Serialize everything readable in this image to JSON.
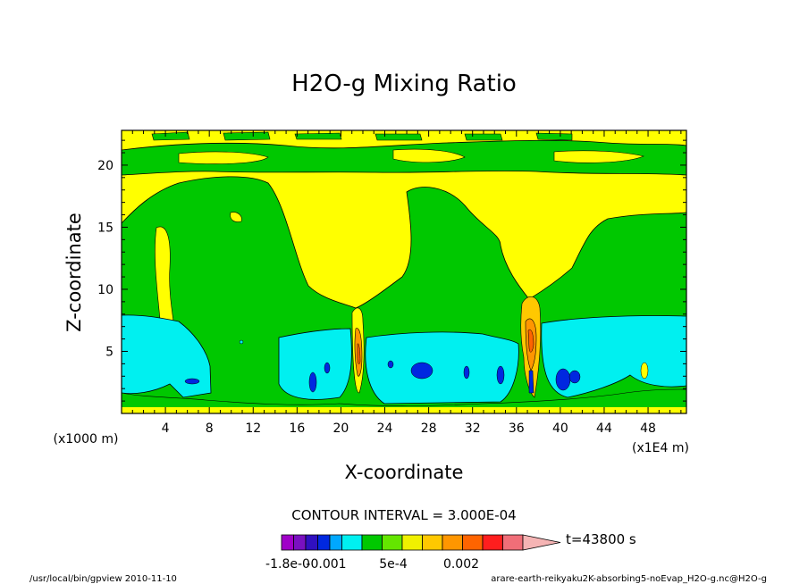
{
  "chart_data": {
    "type": "heatmap",
    "title": "H2O-g Mixing Ratio",
    "xlabel": "X-coordinate",
    "ylabel": "Z-coordinate",
    "x_unit": "(x1E4 m)",
    "y_unit": "(x1000 m)",
    "xlim": [
      0,
      51.5
    ],
    "ylim": [
      0,
      22.8
    ],
    "x_ticks": [
      4,
      8,
      12,
      16,
      20,
      24,
      28,
      32,
      36,
      40,
      44,
      48
    ],
    "y_ticks": [
      5,
      10,
      15,
      20
    ],
    "contour_interval": "CONTOUR INTERVAL = 3.000E-04",
    "time_label": "t=43800 s",
    "colorbar": {
      "levels": [
        -0.0018,
        -0.0015,
        -0.0012,
        -0.0009,
        -0.0006,
        -0.0003,
        0,
        0.0003,
        0.0006,
        0.0009,
        0.0012,
        0.0015,
        0.0018,
        0.0021,
        0.0024
      ],
      "colors": [
        "#a000c8",
        "#7a10c0",
        "#3010c0",
        "#0028e0",
        "#00a8ff",
        "#00f0f0",
        "#00c800",
        "#64e600",
        "#f0f000",
        "#ffc800",
        "#ff9600",
        "#ff6400",
        "#ff1e1e",
        "#f06e78",
        "#f5b4b4"
      ],
      "tick_labels": [
        "-1.8e-0",
        "-0.001",
        "5e-4",
        "0.002"
      ]
    },
    "regions": [
      {
        "zone": "upper atmosphere z 16-22.8",
        "level_range": "0.0006-0.0009 (yellow) with green bands"
      },
      {
        "zone": "mid atmosphere z 8-16",
        "level_range": "0.0003-0.0006 (green)"
      },
      {
        "zone": "lower atmosphere z 0.5-8",
        "level_range": "-0.0003 to 0 (cyan) with green patches"
      },
      {
        "zone": "convective towers x ~21.5 and ~37",
        "level_range": "up to 0.0021 (orange/red cores)"
      }
    ]
  },
  "footer": {
    "left": "/usr/local/bin/gpview  2010-11-10",
    "right": "arare-earth-reikyaku2K-absorbing5-noEvap_H2O-g.nc@H2O-g"
  }
}
